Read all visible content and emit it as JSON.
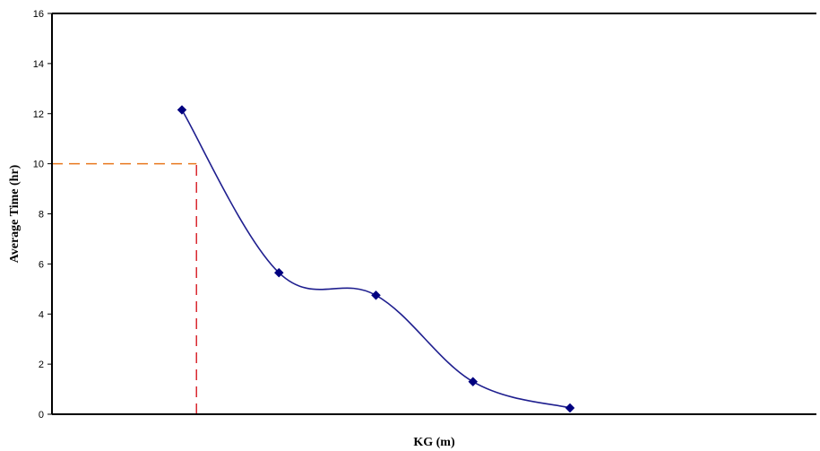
{
  "chart_data": {
    "type": "line",
    "title": "",
    "xlabel": "KG (m)",
    "ylabel": "Average Time (hr)",
    "ylim": [
      0,
      16
    ],
    "yticks": [
      0,
      2,
      4,
      6,
      8,
      10,
      12,
      14,
      16
    ],
    "grid": false,
    "legend": "none",
    "series": [
      {
        "points": [
          {
            "x": 1,
            "y": 12.15
          },
          {
            "x": 2,
            "y": 5.65
          },
          {
            "x": 3,
            "y": 4.75
          },
          {
            "x": 4,
            "y": 1.3
          },
          {
            "x": 5,
            "y": 0.25
          }
        ],
        "color": "#1f1f8f",
        "marker": "diamond",
        "marker_color": "#000080"
      }
    ],
    "reference_lines": [
      {
        "type": "horizontal",
        "y": 10,
        "x_end": 1.15,
        "color": "#e8781e",
        "style": "dashed"
      },
      {
        "type": "vertical",
        "x": 1.15,
        "y_end": 10,
        "color": "#d9282f",
        "style": "dashed"
      }
    ]
  }
}
